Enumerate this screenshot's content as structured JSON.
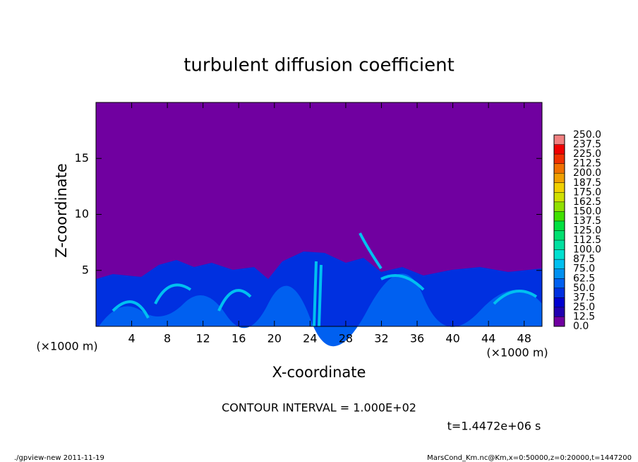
{
  "chart_data": {
    "type": "heatmap",
    "title": "turbulent diffusion coefficient",
    "xlabel": "X-coordinate",
    "ylabel": "Z-coordinate",
    "x_unit": "(×1000 m)",
    "y_unit": "(×1000 m)",
    "xlim": [
      0,
      50
    ],
    "xticks": [
      4,
      8,
      12,
      16,
      20,
      24,
      28,
      32,
      36,
      40,
      44,
      48
    ],
    "ylim": [
      0,
      20
    ],
    "yticks": [
      5,
      10,
      15
    ],
    "levels": [
      {
        "value": 0,
        "label": "0.0"
      },
      12.5,
      25,
      37.5,
      {
        "value": 50,
        "label": "50.0"
      },
      62.5,
      {
        "value": 75,
        "label": "75.0"
      },
      87.5,
      {
        "value": 100,
        "label": "100.0"
      },
      112.5,
      {
        "value": 125,
        "label": "125.0"
      },
      137.5,
      {
        "value": 150,
        "label": "150.0"
      },
      162.5,
      {
        "value": 175,
        "label": "175.0"
      },
      187.5,
      {
        "value": 200,
        "label": "200.0"
      },
      212.5,
      {
        "value": 225,
        "label": "225.0"
      },
      237.5,
      {
        "value": 250,
        "label": "250.0"
      }
    ],
    "level_labels": [
      "0.0",
      "12.5",
      "25.0",
      "37.5",
      "50.0",
      "62.5",
      "75.0",
      "87.5",
      "100.0",
      "112.5",
      "125.0",
      "137.5",
      "150.0",
      "162.5",
      "175.0",
      "187.5",
      "200.0",
      "212.5",
      "225.0",
      "237.5",
      "250.0"
    ],
    "colors": [
      "#7000a0",
      "#2000b0",
      "#0000d0",
      "#0030e0",
      "#0060f0",
      "#0090f0",
      "#00c0f0",
      "#00e0d0",
      "#00e0a0",
      "#00e070",
      "#00e040",
      "#40e000",
      "#90e000",
      "#d0e000",
      "#f0d000",
      "#f0a000",
      "#f07000",
      "#f03000",
      "#f00000",
      "#f08080"
    ],
    "annotations": [
      "CONTOUR INTERVAL = 1.000E+02",
      "t=1.4472e+06 s"
    ],
    "footer_left": "./gpview-new   2011-11-19",
    "footer_right": "MarsCond_Km.nc@Km,x=0:50000,z=0:20000,t=1447200"
  }
}
